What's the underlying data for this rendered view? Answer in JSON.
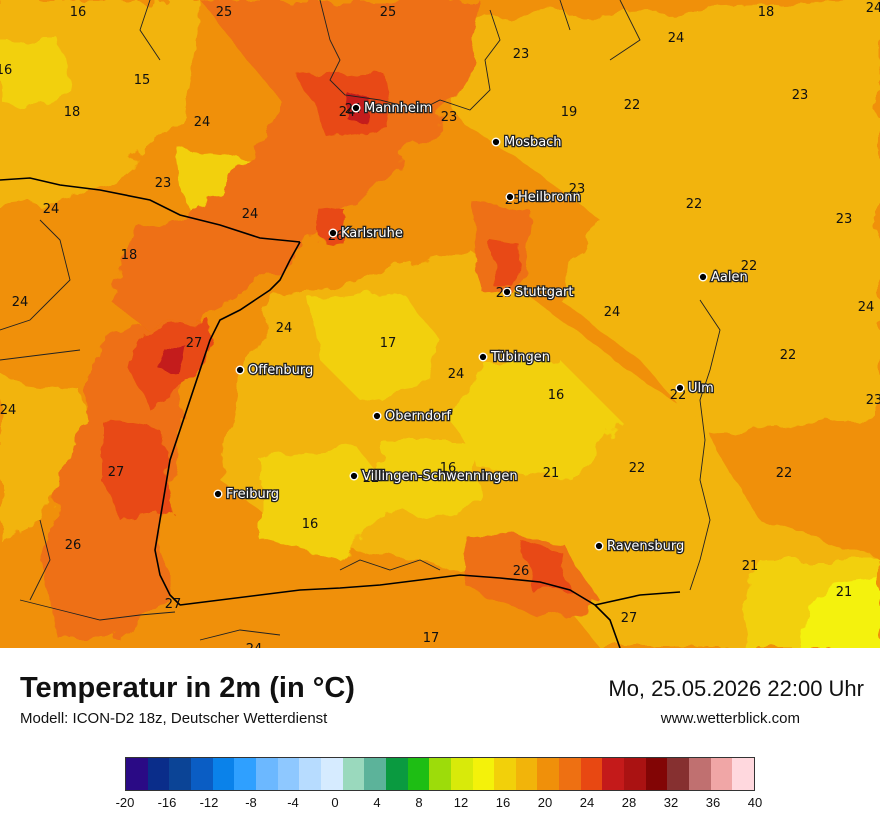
{
  "title": "Temperatur in 2m (in °C)",
  "model": "Modell: ICON-D2 18z, Deutscher Wetterdienst",
  "datetime": "Mo, 25.05.2026 22:00 Uhr",
  "website": "www.wetterblick.com",
  "cities": [
    {
      "name": "Mannheim"
    },
    {
      "name": "Mosbach"
    },
    {
      "name": "Heilbronn"
    },
    {
      "name": "Karlsruhe"
    },
    {
      "name": "Stuttgart"
    },
    {
      "name": "Aalen"
    },
    {
      "name": "Tübingen"
    },
    {
      "name": "Offenburg"
    },
    {
      "name": "Ulm"
    },
    {
      "name": "Oberndorf"
    },
    {
      "name": "Villingen-Schwenningen"
    },
    {
      "name": "Freiburg"
    },
    {
      "name": "Ravensburg"
    }
  ],
  "temperatures": [
    "16",
    "25",
    "25",
    "18",
    "24",
    "24",
    "16",
    "15",
    "23",
    "18",
    "24",
    "19",
    "22",
    "23",
    "24",
    "23",
    "24",
    "23",
    "24",
    "23",
    "22",
    "23",
    "24",
    "18",
    "22",
    "26",
    "24",
    "25",
    "22",
    "24",
    "24",
    "27",
    "17",
    "24",
    "22",
    "24",
    "16",
    "23",
    "25",
    "24",
    "27",
    "22",
    "16",
    "21",
    "22",
    "22",
    "27",
    "16",
    "26",
    "26",
    "21",
    "21",
    "27",
    "24",
    "17"
  ],
  "legend": {
    "colors": [
      "#2a0a85",
      "#0a2d8a",
      "#0b4496",
      "#0a5dc4",
      "#0a82ea",
      "#2fa0ff",
      "#6cb8ff",
      "#8ec8ff",
      "#b7dcff",
      "#d6ebff",
      "#9ad9bd",
      "#5cb39a",
      "#0a9a40",
      "#1ebe14",
      "#9ddc0a",
      "#d8ea0a",
      "#f4f20a",
      "#f2d00a",
      "#f2b40a",
      "#f0900a",
      "#ee7012",
      "#e84812",
      "#c41a1a",
      "#aa1212",
      "#820505",
      "#863030",
      "#c07070",
      "#f0a6a6",
      "#ffd8de"
    ],
    "ticks": [
      "-20",
      "-16",
      "-12",
      "-8",
      "-4",
      "0",
      "4",
      "8",
      "12",
      "16",
      "20",
      "24",
      "28",
      "32",
      "36",
      "40"
    ]
  }
}
